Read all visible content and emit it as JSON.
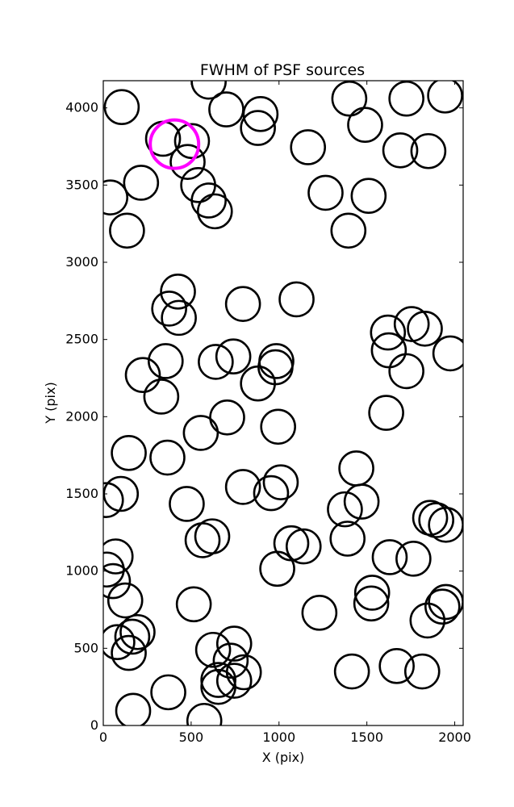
{
  "chart_data": {
    "type": "scatter",
    "title": "FWHM of PSF sources",
    "xlabel": "X (pix)",
    "ylabel": "Y (pix)",
    "xlim": [
      0,
      2048
    ],
    "ylim": [
      0,
      4176
    ],
    "xticks": [
      0,
      500,
      1000,
      1500,
      2000
    ],
    "yticks": [
      0,
      500,
      1000,
      1500,
      2000,
      2500,
      3000,
      3500,
      4000
    ],
    "grid": false,
    "marker": "open-circle",
    "series": [
      {
        "color": "#000000",
        "points": [
          {
            "x": 105,
            "y": 4005
          },
          {
            "x": 340,
            "y": 3800
          },
          {
            "x": 480,
            "y": 3650
          },
          {
            "x": 505,
            "y": 3785
          },
          {
            "x": 600,
            "y": 4170
          },
          {
            "x": 700,
            "y": 3990
          },
          {
            "x": 895,
            "y": 3960
          },
          {
            "x": 880,
            "y": 3870
          },
          {
            "x": 1165,
            "y": 3745
          },
          {
            "x": 1400,
            "y": 4060
          },
          {
            "x": 1490,
            "y": 3890
          },
          {
            "x": 1725,
            "y": 4060
          },
          {
            "x": 1945,
            "y": 4080
          },
          {
            "x": 1690,
            "y": 3725
          },
          {
            "x": 1850,
            "y": 3720
          },
          {
            "x": 40,
            "y": 3420
          },
          {
            "x": 215,
            "y": 3515
          },
          {
            "x": 540,
            "y": 3500
          },
          {
            "x": 600,
            "y": 3400
          },
          {
            "x": 635,
            "y": 3330
          },
          {
            "x": 1265,
            "y": 3450
          },
          {
            "x": 1510,
            "y": 3430
          },
          {
            "x": 135,
            "y": 3205
          },
          {
            "x": 1395,
            "y": 3205
          },
          {
            "x": 425,
            "y": 2810
          },
          {
            "x": 375,
            "y": 2700
          },
          {
            "x": 430,
            "y": 2640
          },
          {
            "x": 795,
            "y": 2730
          },
          {
            "x": 1100,
            "y": 2760
          },
          {
            "x": 1620,
            "y": 2545
          },
          {
            "x": 1755,
            "y": 2600
          },
          {
            "x": 1625,
            "y": 2430
          },
          {
            "x": 1830,
            "y": 2570
          },
          {
            "x": 1975,
            "y": 2410
          },
          {
            "x": 1725,
            "y": 2295
          },
          {
            "x": 355,
            "y": 2360
          },
          {
            "x": 225,
            "y": 2270
          },
          {
            "x": 330,
            "y": 2130
          },
          {
            "x": 640,
            "y": 2355
          },
          {
            "x": 740,
            "y": 2390
          },
          {
            "x": 985,
            "y": 2360
          },
          {
            "x": 980,
            "y": 2320
          },
          {
            "x": 880,
            "y": 2215
          },
          {
            "x": 1610,
            "y": 2025
          },
          {
            "x": 705,
            "y": 1995
          },
          {
            "x": 555,
            "y": 1895
          },
          {
            "x": 995,
            "y": 1935
          },
          {
            "x": 145,
            "y": 1765
          },
          {
            "x": 365,
            "y": 1735
          },
          {
            "x": 1440,
            "y": 1665
          },
          {
            "x": 100,
            "y": 1500
          },
          {
            "x": 15,
            "y": 1460
          },
          {
            "x": 795,
            "y": 1545
          },
          {
            "x": 1010,
            "y": 1575
          },
          {
            "x": 955,
            "y": 1505
          },
          {
            "x": 475,
            "y": 1435
          },
          {
            "x": 1375,
            "y": 1400
          },
          {
            "x": 1470,
            "y": 1450
          },
          {
            "x": 1860,
            "y": 1345
          },
          {
            "x": 1895,
            "y": 1330
          },
          {
            "x": 1950,
            "y": 1300
          },
          {
            "x": 70,
            "y": 1095
          },
          {
            "x": 565,
            "y": 1200
          },
          {
            "x": 620,
            "y": 1225
          },
          {
            "x": 1070,
            "y": 1180
          },
          {
            "x": 1140,
            "y": 1160
          },
          {
            "x": 1390,
            "y": 1210
          },
          {
            "x": 1630,
            "y": 1090
          },
          {
            "x": 1765,
            "y": 1080
          },
          {
            "x": 20,
            "y": 1010
          },
          {
            "x": 55,
            "y": 935
          },
          {
            "x": 990,
            "y": 1015
          },
          {
            "x": 125,
            "y": 810
          },
          {
            "x": 515,
            "y": 785
          },
          {
            "x": 1230,
            "y": 730
          },
          {
            "x": 1530,
            "y": 860
          },
          {
            "x": 1525,
            "y": 790
          },
          {
            "x": 1950,
            "y": 800
          },
          {
            "x": 1930,
            "y": 770
          },
          {
            "x": 1845,
            "y": 680
          },
          {
            "x": 195,
            "y": 605
          },
          {
            "x": 165,
            "y": 575
          },
          {
            "x": 80,
            "y": 540
          },
          {
            "x": 145,
            "y": 470
          },
          {
            "x": 625,
            "y": 490
          },
          {
            "x": 745,
            "y": 530
          },
          {
            "x": 725,
            "y": 420
          },
          {
            "x": 800,
            "y": 345
          },
          {
            "x": 1415,
            "y": 350
          },
          {
            "x": 1670,
            "y": 385
          },
          {
            "x": 1815,
            "y": 350
          },
          {
            "x": 655,
            "y": 295
          },
          {
            "x": 745,
            "y": 290
          },
          {
            "x": 655,
            "y": 250
          },
          {
            "x": 370,
            "y": 215
          },
          {
            "x": 170,
            "y": 95
          },
          {
            "x": 575,
            "y": 30
          }
        ]
      },
      {
        "color": "#ff00ff",
        "points": [
          {
            "x": 405,
            "y": 3765
          }
        ]
      }
    ]
  }
}
